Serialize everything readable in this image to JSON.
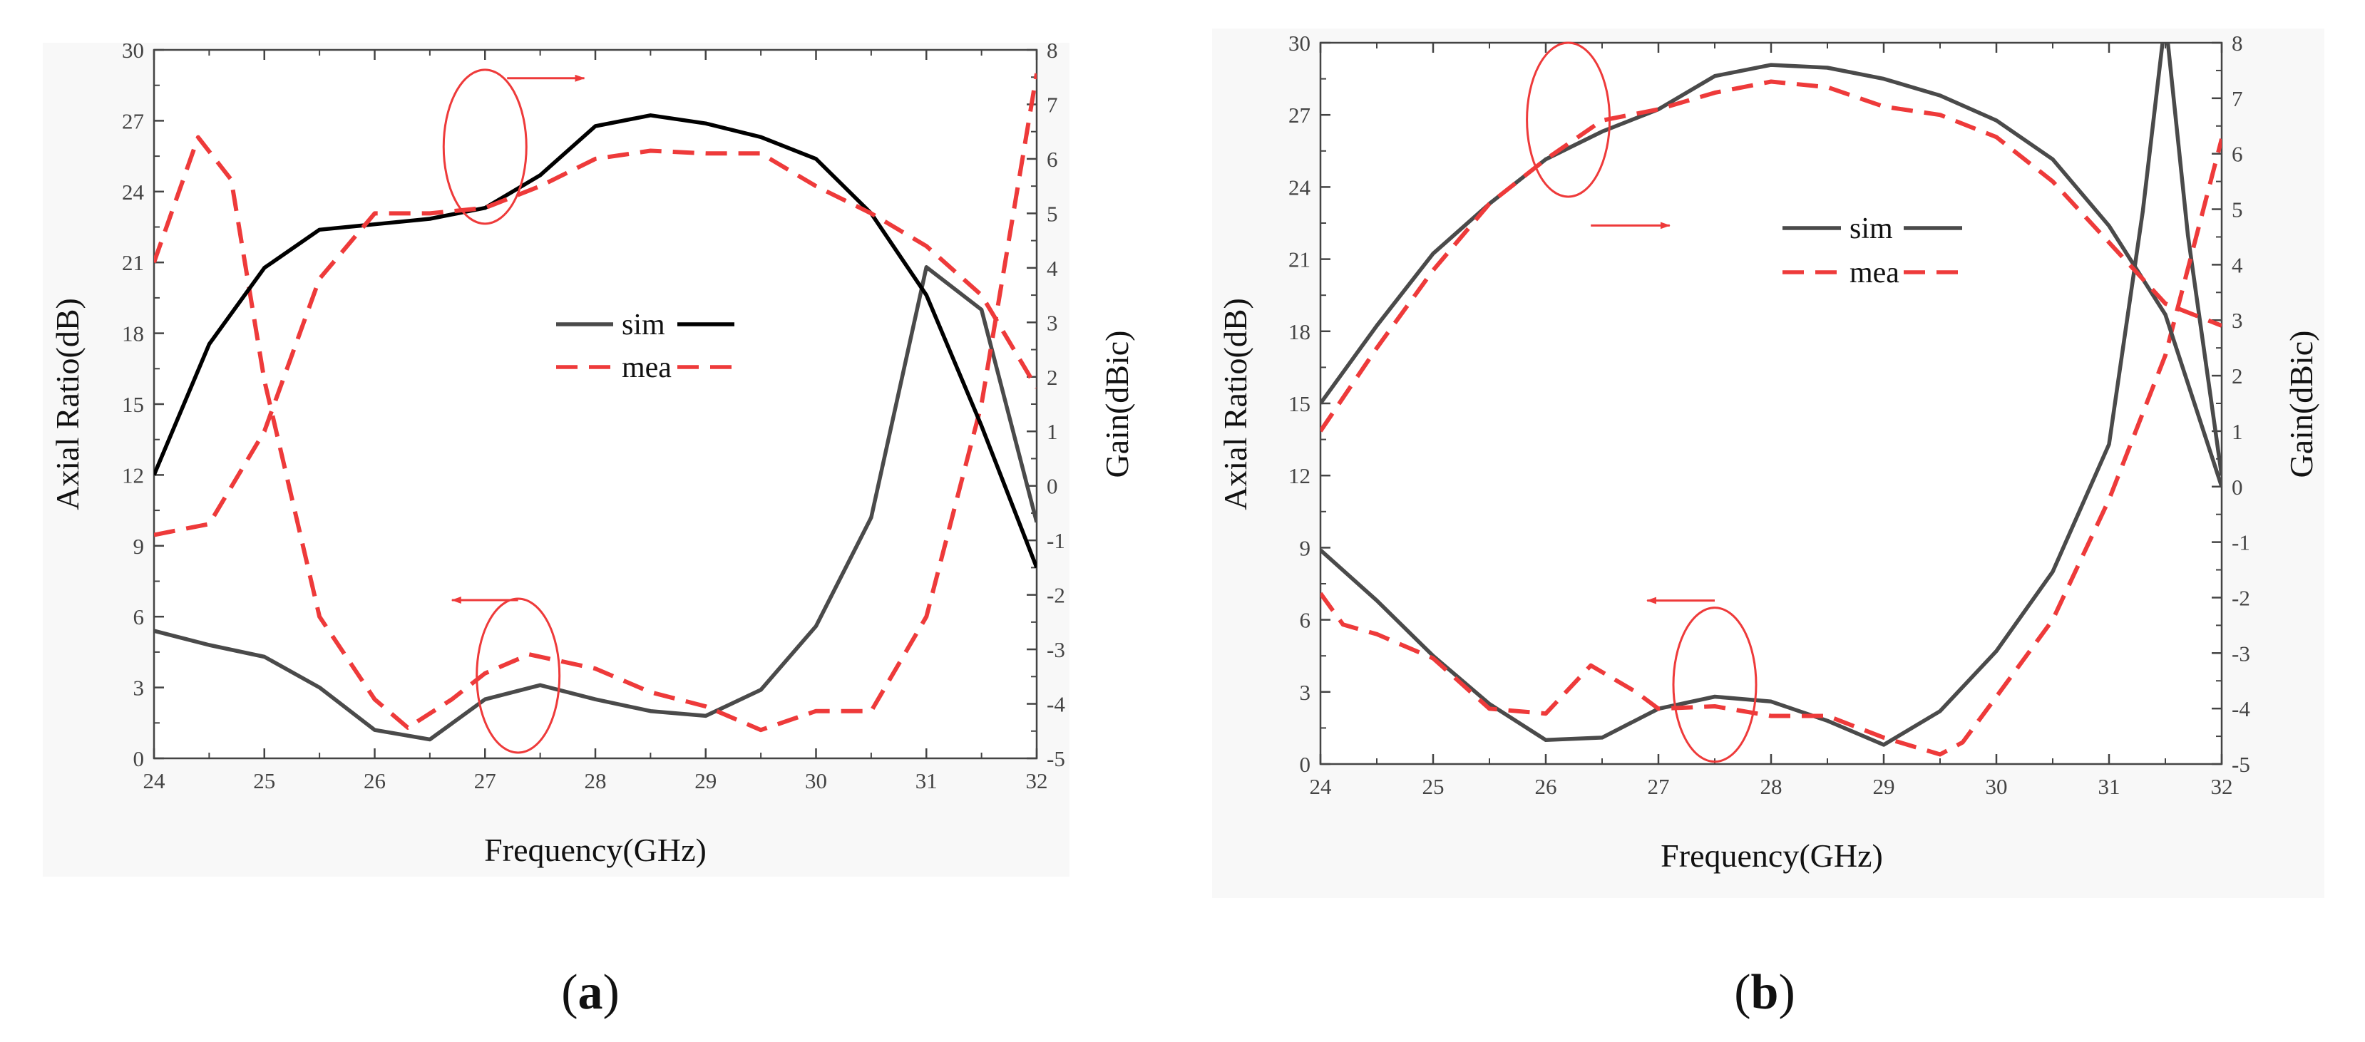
{
  "figure": {
    "panel_labels": [
      {
        "open": "(",
        "letter": "a",
        "close": ")"
      },
      {
        "open": "(",
        "letter": "b",
        "close": ")"
      }
    ]
  },
  "colors": {
    "sim_gain_a": "#000000",
    "sim": "#4a4a4a",
    "mea": "#ee3a3a",
    "annotation": "#ee3a3a",
    "axis": "#444444"
  },
  "chart_data": [
    {
      "type": "line",
      "panel": "a",
      "xlabel": "Frequency(GHz)",
      "ylabel_left": "Axial Ratio(dB)",
      "ylabel_right": "Gain(dBic)",
      "xlim": [
        24,
        32
      ],
      "ylim_left": [
        0,
        30
      ],
      "ylim_right": [
        -5,
        8
      ],
      "xticks": [
        "24",
        "25",
        "26",
        "27",
        "28",
        "29",
        "30",
        "31",
        "32"
      ],
      "yticks_left": [
        "0",
        "3",
        "6",
        "9",
        "12",
        "15",
        "18",
        "21",
        "24",
        "27",
        "30"
      ],
      "yticks_right": [
        "-5",
        "-4",
        "-3",
        "-2",
        "-1",
        "0",
        "1",
        "2",
        "3",
        "4",
        "5",
        "6",
        "7",
        "8"
      ],
      "legend": [
        {
          "label": "sim",
          "style": "solid"
        },
        {
          "label": "mea",
          "style": "dashed"
        }
      ],
      "series": [
        {
          "name": "sim",
          "quantity": "axial_ratio",
          "axis": "left",
          "style": "solid",
          "color_key": "sim",
          "x": [
            24,
            24.5,
            25,
            25.5,
            26,
            26.5,
            27,
            27.5,
            28,
            28.5,
            29,
            29.5,
            30,
            30.5,
            31,
            31.5,
            32
          ],
          "values": [
            5.4,
            4.8,
            4.3,
            3.0,
            1.2,
            0.8,
            2.5,
            3.1,
            2.5,
            2.0,
            1.8,
            2.9,
            5.6,
            10.2,
            20.8,
            19.0,
            10.0
          ]
        },
        {
          "name": "mea",
          "quantity": "axial_ratio",
          "axis": "left",
          "style": "dashed",
          "color_key": "mea",
          "x": [
            24,
            24.4,
            24.7,
            25,
            25.5,
            26,
            26.3,
            26.7,
            27,
            27.4,
            28,
            28.5,
            29,
            29.5,
            30,
            30.5,
            31,
            31.5,
            32
          ],
          "values": [
            21.0,
            26.3,
            24.5,
            16.0,
            6.0,
            2.5,
            1.3,
            2.5,
            3.6,
            4.4,
            3.8,
            2.8,
            2.2,
            1.2,
            2.0,
            2.0,
            6.0,
            15.0,
            29.0
          ]
        },
        {
          "name": "sim",
          "quantity": "gain",
          "axis": "right",
          "style": "solid",
          "color_key": "sim_gain_a",
          "x": [
            24,
            24.5,
            25,
            25.5,
            26,
            26.5,
            27,
            27.5,
            28,
            28.5,
            29,
            29.5,
            30,
            30.5,
            31,
            31.5,
            32
          ],
          "values": [
            0.2,
            2.6,
            4.0,
            4.7,
            4.8,
            4.9,
            5.1,
            5.7,
            6.6,
            6.8,
            6.65,
            6.4,
            6.0,
            5.0,
            3.5,
            1.1,
            -1.5
          ]
        },
        {
          "name": "mea",
          "quantity": "gain",
          "axis": "right",
          "style": "dashed",
          "color_key": "mea",
          "x": [
            24,
            24.5,
            25,
            25.5,
            26,
            26.5,
            27,
            27.5,
            28,
            28.5,
            29,
            29.5,
            30,
            30.5,
            31,
            31.5,
            32
          ],
          "values": [
            -0.9,
            -0.7,
            1.0,
            3.8,
            5.0,
            5.0,
            5.1,
            5.5,
            6.0,
            6.15,
            6.1,
            6.1,
            5.5,
            5.0,
            4.4,
            3.5,
            1.8
          ]
        }
      ],
      "annotations": [
        {
          "ellipse_center": [
            27,
            25.9
          ],
          "arrow_from": [
            27.2,
            28.8
          ],
          "arrow_to": [
            27.9,
            28.8
          ],
          "direction": "right",
          "target_axis": "right"
        },
        {
          "ellipse_center": [
            27.3,
            3.5
          ],
          "arrow_from": [
            27.3,
            6.7
          ],
          "arrow_to": [
            26.7,
            6.7
          ],
          "direction": "left",
          "target_axis": "left"
        }
      ]
    },
    {
      "type": "line",
      "panel": "b",
      "xlabel": "Frequency(GHz)",
      "ylabel_left": "Axial Ratio(dB)",
      "ylabel_right": "Gain(dBic)",
      "xlim": [
        24,
        32
      ],
      "ylim_left": [
        0,
        30
      ],
      "ylim_right": [
        -5,
        8
      ],
      "xticks": [
        "24",
        "25",
        "26",
        "27",
        "28",
        "29",
        "30",
        "31",
        "32"
      ],
      "yticks_left": [
        "0",
        "3",
        "6",
        "9",
        "12",
        "15",
        "18",
        "21",
        "24",
        "27",
        "30"
      ],
      "yticks_right": [
        "-5",
        "-4",
        "-3",
        "-2",
        "-1",
        "0",
        "1",
        "2",
        "3",
        "4",
        "5",
        "6",
        "7",
        "8"
      ],
      "legend": [
        {
          "label": "sim",
          "style": "solid"
        },
        {
          "label": "mea",
          "style": "dashed"
        }
      ],
      "series": [
        {
          "name": "sim",
          "quantity": "axial_ratio",
          "axis": "left",
          "style": "solid",
          "color_key": "sim",
          "x": [
            24,
            24.5,
            25,
            25.5,
            26,
            26.5,
            27,
            27.5,
            28,
            28.5,
            29,
            29.5,
            30,
            30.5,
            31,
            31.3,
            31.5,
            31.7,
            32
          ],
          "values": [
            8.9,
            6.8,
            4.5,
            2.5,
            1.0,
            1.1,
            2.3,
            2.8,
            2.6,
            1.8,
            0.8,
            2.2,
            4.7,
            8.0,
            13.3,
            23.0,
            31.0,
            22.0,
            12.0
          ]
        },
        {
          "name": "mea",
          "quantity": "axial_ratio",
          "axis": "left",
          "style": "dashed",
          "color_key": "mea",
          "x": [
            24,
            24.2,
            24.5,
            25,
            25.5,
            26,
            26.4,
            26.8,
            27,
            27.5,
            28,
            28.5,
            29,
            29.5,
            29.7,
            30,
            30.5,
            31,
            31.5,
            32
          ],
          "values": [
            7.1,
            5.8,
            5.4,
            4.4,
            2.3,
            2.1,
            4.1,
            3.0,
            2.3,
            2.4,
            2.0,
            2.0,
            1.1,
            0.4,
            0.9,
            2.8,
            6.0,
            11.0,
            17.0,
            26.0
          ]
        },
        {
          "name": "sim",
          "quantity": "gain",
          "axis": "right",
          "style": "solid",
          "color_key": "sim",
          "x": [
            24,
            24.5,
            25,
            25.5,
            26,
            26.5,
            27,
            27.5,
            28,
            28.5,
            29,
            29.5,
            30,
            30.5,
            31,
            31.5,
            32
          ],
          "values": [
            1.5,
            2.9,
            4.2,
            5.1,
            5.9,
            6.4,
            6.8,
            7.4,
            7.6,
            7.55,
            7.35,
            7.05,
            6.6,
            5.9,
            4.7,
            3.1,
            0.0
          ]
        },
        {
          "name": "mea",
          "quantity": "gain",
          "axis": "right",
          "style": "dashed",
          "color_key": "mea",
          "x": [
            24,
            24.5,
            25,
            25.5,
            26,
            26.5,
            27,
            27.5,
            28,
            28.5,
            29,
            29.5,
            30,
            30.5,
            31,
            31.5,
            32
          ],
          "values": [
            1.0,
            2.5,
            3.9,
            5.1,
            5.9,
            6.6,
            6.8,
            7.1,
            7.3,
            7.2,
            6.85,
            6.7,
            6.3,
            5.5,
            4.4,
            3.3,
            2.9
          ]
        }
      ],
      "annotations": [
        {
          "ellipse_center": [
            26.2,
            26.8
          ],
          "arrow_from": [
            26.4,
            22.4
          ],
          "arrow_to": [
            27.1,
            22.4
          ],
          "direction": "right",
          "target_axis": "right"
        },
        {
          "ellipse_center": [
            27.5,
            3.3
          ],
          "arrow_from": [
            27.5,
            6.8
          ],
          "arrow_to": [
            26.9,
            6.8
          ],
          "direction": "left",
          "target_axis": "left"
        }
      ]
    }
  ]
}
